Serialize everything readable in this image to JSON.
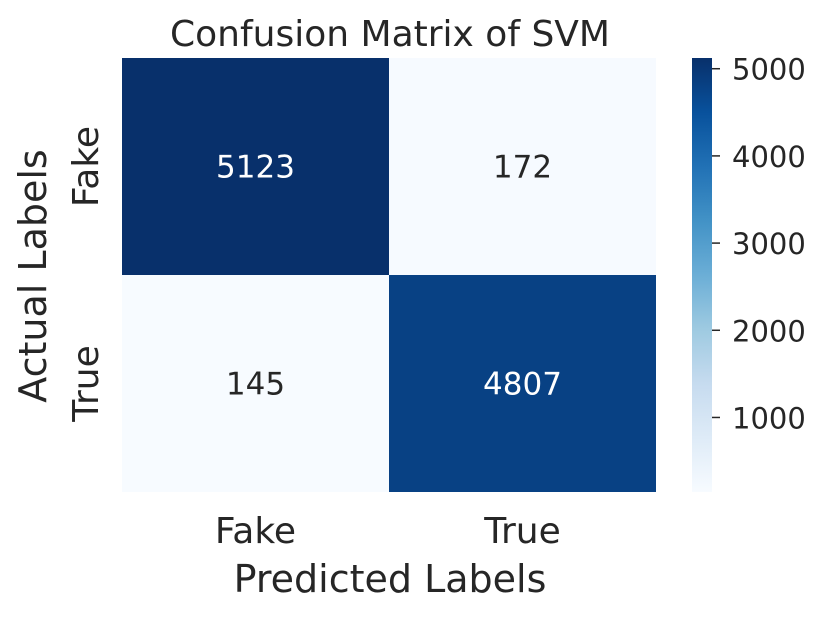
{
  "chart_data": {
    "type": "heatmap",
    "title": "Confusion Matrix of SVM",
    "xlabel": "Predicted Labels",
    "ylabel": "Actual Labels",
    "x_categories": [
      "Fake",
      "True"
    ],
    "y_categories": [
      "Fake",
      "True"
    ],
    "values": [
      [
        5123,
        172
      ],
      [
        145,
        4807
      ]
    ],
    "colormap": "Blues",
    "colorbar": {
      "ticks": [
        1000,
        2000,
        3000,
        4000,
        5000
      ],
      "tick_labels": [
        "1000",
        "2000",
        "3000",
        "4000",
        "5000"
      ],
      "range": [
        145,
        5123
      ]
    },
    "colors": {
      "dark_cell": "#08306b",
      "dark_cell_2": "#08458a",
      "light_cell": "#f7fbff",
      "dark_text": "#ffffff",
      "light_text": "#262626",
      "axis_text": "#262626"
    },
    "grid": false,
    "legend_placement": "colorbar-right"
  }
}
